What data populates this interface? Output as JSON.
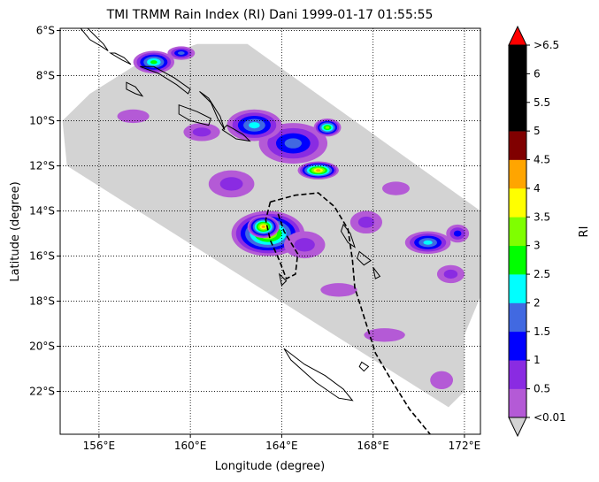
{
  "title": "TMI TRMM Rain Index (RI) Dani 1999-01-17 01:55:55",
  "chart_data": {
    "type": "heatmap",
    "title": "TMI TRMM Rain Index (RI) Dani 1999-01-17 01:55:55",
    "xlabel": "Longitude (degree)",
    "ylabel": "Latitude (degree)",
    "colorbar_label": "RI",
    "xlim": [
      154.3,
      172.7
    ],
    "ylim": [
      -23.9,
      -5.9
    ],
    "x_ticks": [
      {
        "value": 156,
        "label": "156°E"
      },
      {
        "value": 160,
        "label": "160°E"
      },
      {
        "value": 164,
        "label": "164°E"
      },
      {
        "value": 168,
        "label": "168°E"
      },
      {
        "value": 172,
        "label": "172°E"
      }
    ],
    "y_ticks": [
      {
        "value": -6,
        "label": "6°S"
      },
      {
        "value": -8,
        "label": "8°S"
      },
      {
        "value": -10,
        "label": "10°S"
      },
      {
        "value": -12,
        "label": "12°S"
      },
      {
        "value": -14,
        "label": "14°S"
      },
      {
        "value": -16,
        "label": "16°S"
      },
      {
        "value": -18,
        "label": "18°S"
      },
      {
        "value": -20,
        "label": "20°S"
      },
      {
        "value": -22,
        "label": "22°S"
      }
    ],
    "grid": true,
    "colorbar": {
      "labels": [
        "<0.01",
        "0.5",
        "1",
        "1.5",
        "2",
        "2.5",
        "3",
        "3.5",
        "4",
        "4.5",
        "5",
        "5.5",
        "6",
        ">6.5"
      ],
      "colors": [
        "#b45ad6",
        "#8a2be2",
        "#0000ff",
        "#4169e1",
        "#00ffff",
        "#00ff00",
        "#7fff00",
        "#ffff00",
        "#ffa500",
        "#800000",
        "#000000",
        "#000000",
        "#000000"
      ],
      "under_color": "#d3d3d3",
      "over_color": "#ff0000"
    },
    "swath_color": "#d3d3d3",
    "swath_polygon": [
      [
        160.3,
        -6.6
      ],
      [
        162.5,
        -6.6
      ],
      [
        172.7,
        -14.0
      ],
      [
        172.7,
        -17.8
      ],
      [
        172.0,
        -19.5
      ],
      [
        172.0,
        -22.0
      ],
      [
        171.3,
        -22.7
      ],
      [
        154.6,
        -12.0
      ],
      [
        154.4,
        -10.0
      ],
      [
        155.6,
        -8.8
      ],
      [
        157.5,
        -7.6
      ]
    ],
    "rain_cells": [
      {
        "lon": 163.4,
        "lat": -15.0,
        "rx": 1.6,
        "ry": 1.0,
        "value": 3.6
      },
      {
        "lon": 163.2,
        "lat": -14.7,
        "rx": 0.7,
        "ry": 0.5,
        "value": 4.2
      },
      {
        "lon": 165.6,
        "lat": -12.2,
        "rx": 0.9,
        "ry": 0.4,
        "value": 4.4
      },
      {
        "lon": 164.5,
        "lat": -11.0,
        "rx": 1.5,
        "ry": 0.9,
        "value": 1.8
      },
      {
        "lon": 162.8,
        "lat": -10.2,
        "rx": 1.2,
        "ry": 0.7,
        "value": 2.2
      },
      {
        "lon": 166.0,
        "lat": -10.3,
        "rx": 0.6,
        "ry": 0.4,
        "value": 3.5
      },
      {
        "lon": 158.4,
        "lat": -7.4,
        "rx": 0.9,
        "ry": 0.5,
        "value": 2.6
      },
      {
        "lon": 159.6,
        "lat": -7.0,
        "rx": 0.6,
        "ry": 0.3,
        "value": 1.6
      },
      {
        "lon": 170.4,
        "lat": -15.4,
        "rx": 1.0,
        "ry": 0.5,
        "value": 2.2
      },
      {
        "lon": 171.7,
        "lat": -15.0,
        "rx": 0.5,
        "ry": 0.4,
        "value": 1.2
      },
      {
        "lon": 161.8,
        "lat": -12.8,
        "rx": 1.0,
        "ry": 0.6,
        "value": 1.0
      },
      {
        "lon": 167.7,
        "lat": -14.5,
        "rx": 0.7,
        "ry": 0.5,
        "value": 0.8
      },
      {
        "lon": 160.5,
        "lat": -10.5,
        "rx": 0.8,
        "ry": 0.4,
        "value": 0.7
      },
      {
        "lon": 157.5,
        "lat": -9.8,
        "rx": 0.7,
        "ry": 0.3,
        "value": 0.5
      },
      {
        "lon": 165.0,
        "lat": -15.5,
        "rx": 0.9,
        "ry": 0.6,
        "value": 0.9
      },
      {
        "lon": 171.4,
        "lat": -16.8,
        "rx": 0.6,
        "ry": 0.4,
        "value": 0.6
      },
      {
        "lon": 169.0,
        "lat": -13.0,
        "rx": 0.6,
        "ry": 0.3,
        "value": 0.4
      },
      {
        "lon": 171.0,
        "lat": -21.5,
        "rx": 0.5,
        "ry": 0.4,
        "value": 0.3
      },
      {
        "lon": 166.5,
        "lat": -17.5,
        "rx": 0.8,
        "ry": 0.3,
        "value": 0.3
      },
      {
        "lon": 168.5,
        "lat": -19.5,
        "rx": 0.9,
        "ry": 0.3,
        "value": 0.3
      }
    ],
    "track": [
      [
        163.5,
        -13.6
      ],
      [
        164.6,
        -13.3
      ],
      [
        165.6,
        -13.2
      ],
      [
        166.3,
        -13.8
      ],
      [
        166.9,
        -14.8
      ],
      [
        167.1,
        -16.2
      ],
      [
        167.2,
        -17.4
      ],
      [
        167.7,
        -19.0
      ],
      [
        168.1,
        -20.3
      ],
      [
        168.8,
        -21.5
      ],
      [
        169.6,
        -22.8
      ],
      [
        170.5,
        -23.9
      ]
    ],
    "track_loop": [
      [
        163.5,
        -13.6
      ],
      [
        163.3,
        -14.4
      ],
      [
        163.5,
        -15.3
      ],
      [
        163.9,
        -16.2
      ],
      [
        164.2,
        -17.0
      ],
      [
        164.6,
        -16.8
      ],
      [
        164.7,
        -15.9
      ],
      [
        164.1,
        -14.9
      ],
      [
        163.8,
        -14.0
      ]
    ],
    "coastlines": [
      [
        [
          155.2,
          -5.9
        ],
        [
          155.6,
          -6.4
        ],
        [
          156.1,
          -6.7
        ],
        [
          156.4,
          -6.9
        ],
        [
          156.2,
          -6.6
        ],
        [
          155.8,
          -6.2
        ],
        [
          155.5,
          -5.9
        ]
      ],
      [
        [
          156.5,
          -7.0
        ],
        [
          157.0,
          -7.3
        ],
        [
          157.4,
          -7.5
        ],
        [
          157.1,
          -7.2
        ],
        [
          156.7,
          -7.0
        ]
      ],
      [
        [
          157.8,
          -7.6
        ],
        [
          158.6,
          -7.9
        ],
        [
          159.4,
          -8.4
        ],
        [
          159.9,
          -8.8
        ],
        [
          160.0,
          -8.6
        ],
        [
          159.3,
          -8.1
        ],
        [
          158.4,
          -7.6
        ]
      ],
      [
        [
          157.2,
          -8.3
        ],
        [
          157.6,
          -8.5
        ],
        [
          157.9,
          -8.9
        ],
        [
          157.6,
          -8.8
        ],
        [
          157.2,
          -8.6
        ]
      ],
      [
        [
          160.4,
          -8.7
        ],
        [
          160.9,
          -9.2
        ],
        [
          161.2,
          -9.9
        ],
        [
          161.5,
          -10.4
        ],
        [
          161.3,
          -9.8
        ],
        [
          160.8,
          -9.0
        ]
      ],
      [
        [
          159.5,
          -9.3
        ],
        [
          160.3,
          -9.6
        ],
        [
          160.9,
          -9.9
        ],
        [
          160.8,
          -10.2
        ],
        [
          160.0,
          -10.0
        ],
        [
          159.5,
          -9.7
        ]
      ],
      [
        [
          161.6,
          -10.2
        ],
        [
          162.3,
          -10.6
        ],
        [
          162.6,
          -10.9
        ],
        [
          162.0,
          -10.8
        ],
        [
          161.4,
          -10.4
        ]
      ],
      [
        [
          166.7,
          -14.6
        ],
        [
          167.0,
          -15.0
        ],
        [
          167.2,
          -15.6
        ],
        [
          166.9,
          -15.4
        ],
        [
          166.6,
          -14.9
        ]
      ],
      [
        [
          167.4,
          -15.8
        ],
        [
          167.9,
          -16.2
        ],
        [
          167.6,
          -16.4
        ],
        [
          167.3,
          -16.1
        ]
      ],
      [
        [
          168.0,
          -16.5
        ],
        [
          168.3,
          -16.9
        ],
        [
          168.1,
          -17.0
        ]
      ],
      [
        [
          164.1,
          -20.1
        ],
        [
          165.0,
          -20.8
        ],
        [
          165.9,
          -21.3
        ],
        [
          166.7,
          -21.9
        ],
        [
          167.1,
          -22.4
        ],
        [
          166.5,
          -22.3
        ],
        [
          165.5,
          -21.6
        ],
        [
          164.4,
          -20.6
        ]
      ],
      [
        [
          167.5,
          -20.7
        ],
        [
          167.8,
          -20.9
        ],
        [
          167.6,
          -21.1
        ],
        [
          167.4,
          -20.9
        ]
      ],
      [
        [
          163.9,
          -16.8
        ],
        [
          164.2,
          -17.1
        ],
        [
          164.0,
          -17.3
        ]
      ]
    ]
  }
}
